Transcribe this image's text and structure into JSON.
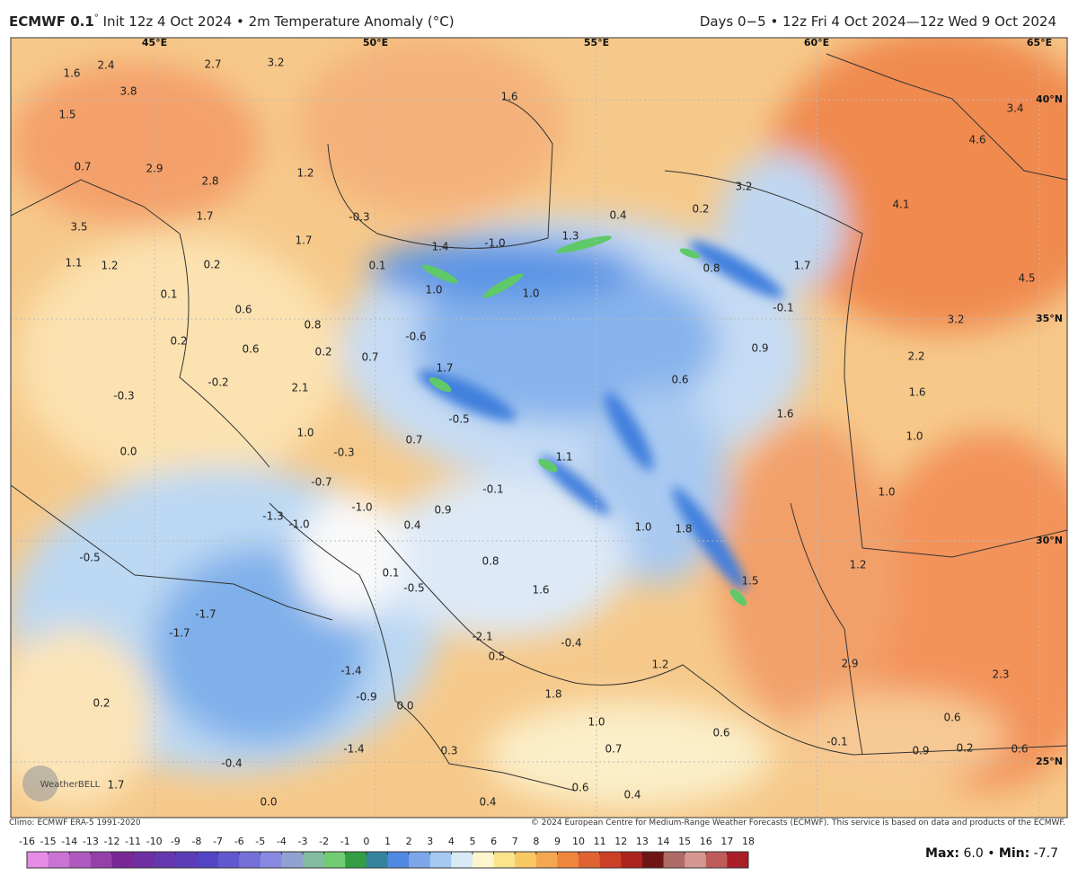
{
  "header": {
    "model": "ECMWF 0.1",
    "degree": "°",
    "init": "Init 12z 4 Oct 2024 • 2m Temperature Anomaly (°C)",
    "range": "Days 0−5 • 12z Fri 4 Oct 2024—12z Wed 9 Oct 2024"
  },
  "longitudes": [
    "45°E",
    "50°E",
    "55°E",
    "60°E",
    "65°E"
  ],
  "latitudes": [
    "40°N",
    "35°N",
    "30°N",
    "25°N"
  ],
  "map_labels": [
    "1.6",
    "2.4",
    "2.7",
    "3.2",
    "3.8",
    "1.5",
    "1.6",
    "3.4",
    "4.6",
    "0.7",
    "2.9",
    "2.8",
    "1.2",
    "3.2",
    "4.1",
    "1.7",
    "-0.3",
    "0.4",
    "0.2",
    "3.5",
    "1.7",
    "1.4",
    "-1.0",
    "1.3",
    "1.1",
    "1.2",
    "0.2",
    "0.1",
    "1.7",
    "0.8",
    "4.5",
    "1.0",
    "1.0",
    "0.1",
    "0.6",
    "-0.1",
    "0.8",
    "3.2",
    "-0.6",
    "0.2",
    "0.6",
    "0.2",
    "0.9",
    "0.7",
    "2.2",
    "1.7",
    "-0.2",
    "2.1",
    "0.6",
    "1.6",
    "-0.3",
    "-0.5",
    "1.6",
    "1.0",
    "0.7",
    "1.0",
    "0.0",
    "-0.3",
    "1.1",
    "-0.7",
    "-0.1",
    "1.0",
    "-1.0",
    "0.9",
    "-1.3",
    "-1.0",
    "0.4",
    "1.0",
    "1.8",
    "-0.5",
    "1.2",
    "0.8",
    "0.1",
    "-0.5",
    "1.5",
    "1.6",
    "-1.7",
    "-1.7",
    "-2.1",
    "-0.4",
    "0.5",
    "2.9",
    "1.2",
    "-1.4",
    "2.3",
    "1.8",
    "-0.9",
    "0.2",
    "0.0",
    "1.0",
    "0.6",
    "0.6",
    "-1.4",
    "0.3",
    "0.7",
    "-0.1",
    "0.9",
    "0.2",
    "0.6",
    "-0.4",
    "1.7",
    "0.6",
    "0.0",
    "0.4",
    "0.4"
  ],
  "logo": "WeatherBELL",
  "footer": {
    "climo": "Climo: ECMWF ERA-5 1991-2020",
    "copyright": "© 2024 European Centre for Medium-Range Weather Forecasts (ECMWF). This service is based on data and products of the ECMWF."
  },
  "colorbar": {
    "ticks": [
      -16,
      -15,
      -14,
      -13,
      -12,
      -11,
      -10,
      -9,
      -8,
      -7,
      -6,
      -5,
      -4,
      -3,
      -2,
      -1,
      0,
      1,
      2,
      3,
      4,
      5,
      6,
      7,
      8,
      9,
      10,
      11,
      12,
      13,
      14,
      15,
      16,
      17,
      18
    ]
  },
  "stats": {
    "max_label": "Max:",
    "max": "6.0",
    "sep": "•",
    "min_label": "Min:",
    "min": "-7.7"
  }
}
